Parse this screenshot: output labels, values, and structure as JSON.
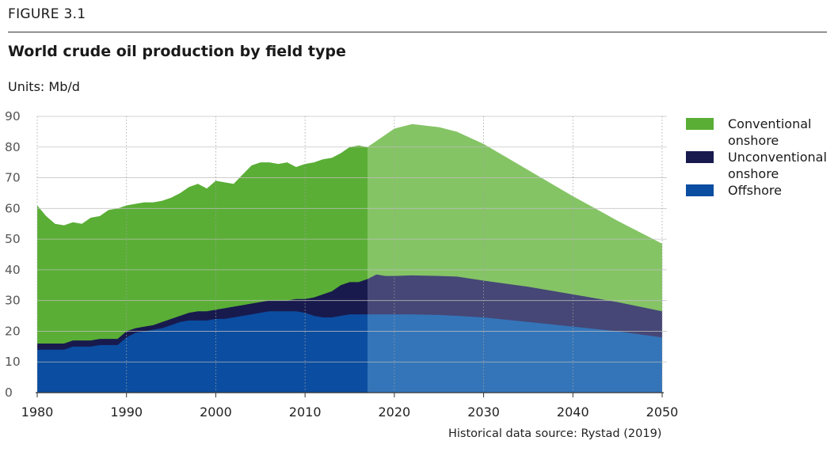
{
  "figure_label": "FIGURE 3.1",
  "title": "World crude oil production by field type",
  "units": "Units: Mb/d",
  "source": "Historical data source: Rystad (2019)",
  "colors": {
    "conventional_hist": "#5aae35",
    "conventional_proj": "#85c465",
    "unconventional_hist": "#181a4e",
    "unconventional_proj": "#464776",
    "offshore_hist": "#0b4da0",
    "offshore_proj": "#3475b9"
  },
  "chart_data": {
    "type": "area",
    "stacked": true,
    "xlim": [
      1980,
      2050
    ],
    "ylim": [
      0,
      90
    ],
    "x_ticks": [
      "1980",
      "1990",
      "2000",
      "2010",
      "2020",
      "2030",
      "2040",
      "2050"
    ],
    "y_ticks": [
      "0",
      "10",
      "20",
      "30",
      "40",
      "50",
      "60",
      "70",
      "80",
      "90"
    ],
    "grid": true,
    "legend_position": "right",
    "historical_end": 2017,
    "x": [
      1980,
      1981,
      1982,
      1983,
      1984,
      1985,
      1986,
      1987,
      1988,
      1989,
      1990,
      1991,
      1992,
      1993,
      1994,
      1995,
      1996,
      1997,
      1998,
      1999,
      2000,
      2001,
      2002,
      2003,
      2004,
      2005,
      2006,
      2007,
      2008,
      2009,
      2010,
      2011,
      2012,
      2013,
      2014,
      2015,
      2016,
      2017,
      2018,
      2019,
      2020,
      2022,
      2025,
      2027,
      2030,
      2035,
      2040,
      2045,
      2050
    ],
    "series": [
      {
        "name": "Offshore",
        "color_key": "offshore",
        "values": [
          14,
          14,
          14,
          14,
          15,
          15,
          15,
          15.5,
          15.5,
          15.5,
          18,
          19.5,
          20,
          20.5,
          21,
          22,
          23,
          23.5,
          23.5,
          23.5,
          24,
          24,
          24.5,
          25,
          25.5,
          26,
          26.5,
          26.5,
          26.5,
          26.5,
          26,
          25,
          24.5,
          24.5,
          25,
          25.5,
          25.5,
          25.5,
          25.5,
          25.5,
          25.5,
          25.5,
          25.3,
          25,
          24.5,
          23,
          21.5,
          20,
          18
        ]
      },
      {
        "name": "Unconventional onshore",
        "color_key": "unconventional",
        "values": [
          16,
          16,
          16,
          16,
          17,
          17,
          17,
          17.5,
          17.5,
          17.5,
          20,
          21,
          21.5,
          22,
          23,
          24,
          25,
          26,
          26.5,
          26.5,
          27,
          27.5,
          28,
          28.5,
          29,
          29.5,
          30,
          30,
          30,
          30.5,
          30.5,
          31,
          32,
          33,
          35,
          36,
          36,
          37,
          38.5,
          38,
          38,
          38.2,
          38,
          37.8,
          36.5,
          34.5,
          32,
          29.5,
          26.5
        ]
      },
      {
        "name": "Conventional onshore",
        "color_key": "conventional",
        "values": [
          61,
          57.5,
          55,
          54.5,
          55.5,
          55,
          57,
          57.5,
          59.5,
          60,
          61,
          61.5,
          62,
          62,
          62.5,
          63.5,
          65,
          67,
          68,
          66.5,
          69,
          68.5,
          68,
          71,
          74,
          75,
          75,
          74.5,
          75,
          73.5,
          74.5,
          75,
          76,
          76.5,
          78,
          80,
          80.5,
          80,
          82,
          84,
          86,
          87.5,
          86.5,
          85,
          81,
          72.5,
          64,
          56,
          48.5
        ]
      }
    ]
  },
  "legend": [
    {
      "label": "Conventional onshore",
      "color_key": "conventional_hist"
    },
    {
      "label": "Unconventional onshore",
      "color_key": "unconventional_hist"
    },
    {
      "label": "Offshore",
      "color_key": "offshore_hist"
    }
  ]
}
